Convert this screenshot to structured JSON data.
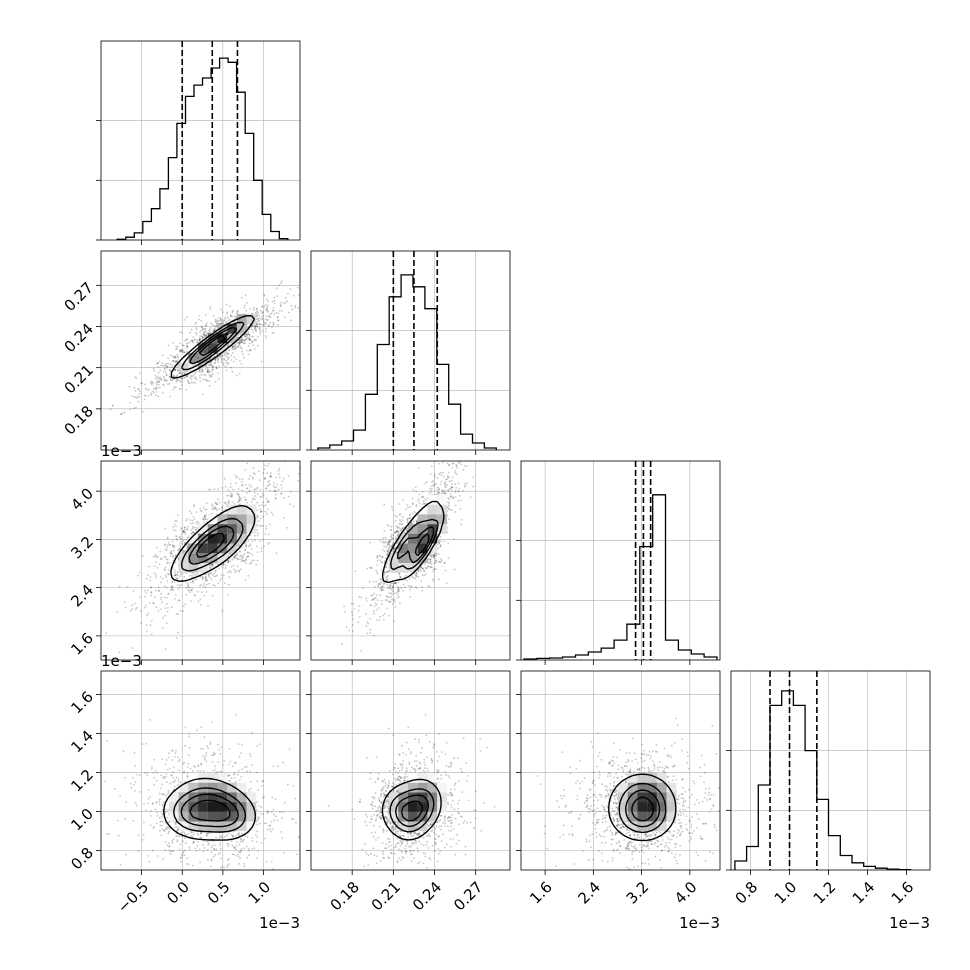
{
  "chart_data": {
    "type": "corner",
    "parameters": 4,
    "colors": {
      "ink": "#000000",
      "grid": "#b0b0b0",
      "axes": "#000000",
      "background": "#ffffff"
    },
    "grid": true,
    "quantile_lines": "dashed",
    "x_ticks": [
      {
        "values": [
          -0.5,
          0.0,
          0.5,
          1.0
        ],
        "labels": [
          "−0.5",
          "0.0",
          "0.5",
          "1.0"
        ],
        "range": [
          -1.0,
          1.45
        ],
        "offset_text": "1e−3"
      },
      {
        "values": [
          0.18,
          0.21,
          0.24,
          0.27
        ],
        "labels": [
          "0.18",
          "0.21",
          "0.24",
          "0.27"
        ],
        "range": [
          0.15,
          0.295
        ]
      },
      {
        "values": [
          1.6,
          2.4,
          3.2,
          4.0
        ],
        "labels": [
          "1.6",
          "2.4",
          "3.2",
          "4.0"
        ],
        "range": [
          1.2,
          4.5
        ],
        "offset_text": "1e−3"
      },
      {
        "values": [
          0.8,
          1.0,
          1.2,
          1.4,
          1.6
        ],
        "labels": [
          "0.8",
          "1.0",
          "1.2",
          "1.4",
          "1.6"
        ],
        "range": [
          0.7,
          1.72
        ],
        "offset_text": "1e−3"
      }
    ],
    "y_ticks": [
      null,
      {
        "values": [
          0.18,
          0.21,
          0.24,
          0.27
        ],
        "labels": [
          "0.18",
          "0.21",
          "0.24",
          "0.27"
        ],
        "range": [
          0.15,
          0.295
        ]
      },
      {
        "values": [
          1.6,
          2.4,
          3.2,
          4.0
        ],
        "labels": [
          "1.6",
          "2.4",
          "3.2",
          "4.0"
        ],
        "range": [
          1.2,
          4.5
        ],
        "offset_text": "1e−3"
      },
      {
        "values": [
          0.8,
          1.0,
          1.2,
          1.4,
          1.6
        ],
        "labels": [
          "0.8",
          "1.0",
          "1.2",
          "1.4",
          "1.6"
        ],
        "range": [
          0.7,
          1.72
        ],
        "offset_text": "1e−3"
      }
    ],
    "histograms": [
      {
        "param": 0,
        "bins_range": [
          -0.8,
          1.3
        ],
        "counts": [
          0.5,
          2,
          5,
          13,
          22,
          36,
          58,
          82,
          101,
          109,
          114,
          121,
          128,
          125,
          104,
          75,
          42,
          18,
          6,
          1
        ],
        "ylim": [
          0,
          140
        ],
        "quantiles": [
          0.0,
          0.37,
          0.68
        ]
      },
      {
        "param": 1,
        "bins_range": [
          0.155,
          0.285
        ],
        "counts": [
          1,
          2.5,
          4.5,
          10,
          28,
          53,
          77,
          88,
          82,
          71,
          43,
          23,
          8,
          3.5,
          1
        ],
        "ylim": [
          0,
          100
        ],
        "quantiles": [
          0.21,
          0.225,
          0.242
        ]
      },
      {
        "param": 2,
        "bins_range": [
          1.25,
          4.45
        ],
        "counts": [
          0.5,
          0.8,
          1,
          1.5,
          2.5,
          4,
          6,
          10,
          18,
          57,
          83,
          10,
          5,
          3,
          1.5
        ],
        "ylim": [
          0,
          100
        ],
        "quantiles": [
          3.1,
          3.23,
          3.35
        ]
      },
      {
        "param": 3,
        "bins_range": [
          0.72,
          1.62
        ],
        "counts": [
          5,
          13,
          47,
          91,
          99,
          91,
          66,
          39,
          19,
          8,
          4,
          2,
          1,
          0.5,
          0.2
        ],
        "ylim": [
          0,
          110
        ],
        "quantiles": [
          0.9,
          1.0,
          1.14
        ]
      }
    ],
    "pairs": [
      {
        "x_param": 0,
        "y_param": 1,
        "center": [
          0.4,
          0.225
        ],
        "sd": [
          0.36,
          0.014
        ],
        "corr": 0.9,
        "peaks": [
          [
            0.32,
            0.224,
            1.0
          ],
          [
            0.55,
            0.236,
            0.9
          ],
          [
            0.15,
            0.213,
            0.55
          ]
        ]
      },
      {
        "x_param": 0,
        "y_param": 2,
        "center": [
          0.4,
          3.2
        ],
        "sd": [
          0.36,
          0.5
        ],
        "corr": 0.8,
        "peaks": [
          [
            0.35,
            3.1,
            1.0
          ],
          [
            0.15,
            3.0,
            0.45
          ],
          [
            0.6,
            3.15,
            0.6
          ]
        ]
      },
      {
        "x_param": 1,
        "y_param": 2,
        "center": [
          0.225,
          3.2
        ],
        "sd": [
          0.014,
          0.5
        ],
        "corr": 0.85,
        "peaks": [
          [
            0.232,
            3.1,
            1.0
          ],
          [
            0.215,
            3.0,
            0.45
          ]
        ]
      },
      {
        "x_param": 0,
        "y_param": 3,
        "center": [
          0.35,
          1.02
        ],
        "sd": [
          0.36,
          0.12
        ],
        "corr": -0.1,
        "peaks": [
          [
            0.1,
            0.98,
            0.9
          ],
          [
            0.55,
            0.98,
            1.0
          ],
          [
            0.3,
            1.05,
            0.55
          ]
        ]
      },
      {
        "x_param": 1,
        "y_param": 3,
        "center": [
          0.225,
          1.02
        ],
        "sd": [
          0.014,
          0.12
        ],
        "corr": 0.1,
        "peaks": [
          [
            0.222,
            0.98,
            1.0
          ],
          [
            0.232,
            1.04,
            0.7
          ],
          [
            0.212,
            1.02,
            0.5
          ]
        ]
      },
      {
        "x_param": 2,
        "y_param": 3,
        "center": [
          3.2,
          1.02
        ],
        "sd": [
          0.45,
          0.12
        ],
        "corr": 0.0,
        "peaks": [
          [
            3.22,
            0.98,
            1.0
          ],
          [
            3.22,
            1.08,
            0.6
          ]
        ]
      }
    ]
  }
}
